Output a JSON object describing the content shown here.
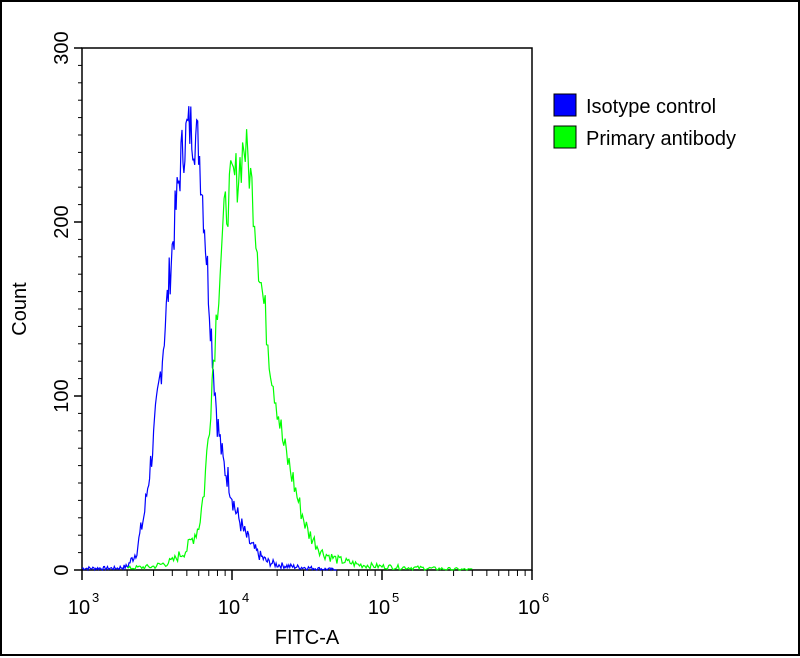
{
  "chart_data": {
    "type": "line",
    "title": "",
    "xlabel": "FITC-A",
    "ylabel": "Count",
    "x_scale": "log",
    "xlim": [
      1000,
      1000000
    ],
    "ylim": [
      0,
      300
    ],
    "x_ticks": [
      {
        "base": "10",
        "exp": "3",
        "value": 1000
      },
      {
        "base": "10",
        "exp": "4",
        "value": 10000
      },
      {
        "base": "10",
        "exp": "5",
        "value": 100000
      },
      {
        "base": "10",
        "exp": "6",
        "value": 1000000
      }
    ],
    "y_ticks": [
      "0",
      "100",
      "200",
      "300"
    ],
    "y_tick_values": [
      0,
      100,
      200,
      300
    ],
    "grid": false,
    "legend_position": "top-right",
    "series": [
      {
        "name": "Isotype control",
        "color": "#0000ff",
        "x": [
          1000,
          1300,
          1700,
          2000,
          2300,
          2600,
          3000,
          3400,
          3800,
          4200,
          4600,
          5000,
          5300,
          5600,
          6000,
          6500,
          7000,
          7500,
          8000,
          8700,
          9500,
          10500,
          12000,
          13500,
          15000,
          17000,
          20000,
          25000,
          35000,
          50000
        ],
        "y": [
          1,
          1,
          1,
          2,
          10,
          32,
          75,
          120,
          165,
          205,
          238,
          252,
          255,
          250,
          245,
          205,
          160,
          118,
          85,
          62,
          52,
          35,
          22,
          14,
          9,
          5,
          3,
          2,
          1,
          0
        ]
      },
      {
        "name": "Primary antibody",
        "color": "#00ff00",
        "x": [
          2000,
          3000,
          4000,
          5000,
          6000,
          6500,
          7000,
          7500,
          8000,
          8500,
          9000,
          9500,
          10000,
          11000,
          12000,
          13000,
          14000,
          15000,
          16000,
          17000,
          18000,
          20000,
          22000,
          25000,
          28000,
          32000,
          40000,
          50000,
          70000,
          100000,
          200000,
          400000
        ],
        "y": [
          1,
          2,
          5,
          12,
          25,
          45,
          80,
          120,
          155,
          185,
          205,
          215,
          222,
          228,
          245,
          232,
          210,
          180,
          158,
          140,
          120,
          95,
          72,
          55,
          38,
          22,
          10,
          6,
          3,
          2,
          1,
          0
        ]
      }
    ]
  }
}
